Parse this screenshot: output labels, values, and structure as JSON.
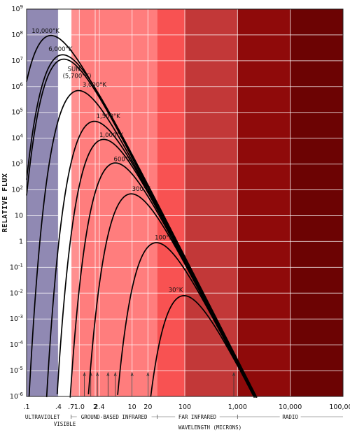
{
  "chart_data": {
    "type": "line",
    "title": "",
    "ylabel": "RELATIVE FLUX",
    "xlabel": "WAVELENGTH (MICRONS)",
    "x_scale": "log",
    "y_scale": "log",
    "xlim": [
      0.1,
      100000
    ],
    "ylim": [
      1e-06,
      1000000000.0
    ],
    "grid": true,
    "x_tick_labels": [
      {
        "v": 0.1,
        "t": ".1"
      },
      {
        "v": 0.4,
        "t": ".4"
      },
      {
        "v": 0.7,
        "t": ".7"
      },
      {
        "v": 1.0,
        "t": "1.0"
      },
      {
        "v": 2,
        "t": "2"
      },
      {
        "v": 2.4,
        "t": "2.4"
      },
      {
        "v": 10,
        "t": "10"
      },
      {
        "v": 20,
        "t": "20"
      },
      {
        "v": 100,
        "t": "100"
      },
      {
        "v": 1000,
        "t": "1,000"
      },
      {
        "v": 10000,
        "t": "10,000"
      },
      {
        "v": 100000,
        "t": "100,000"
      }
    ],
    "y_tick_labels": [
      {
        "e": 9,
        "t": "10",
        "sup": "9"
      },
      {
        "e": 8,
        "t": "10",
        "sup": "8"
      },
      {
        "e": 7,
        "t": "10",
        "sup": "7"
      },
      {
        "e": 6,
        "t": "10",
        "sup": "6"
      },
      {
        "e": 5,
        "t": "10",
        "sup": "5"
      },
      {
        "e": 4,
        "t": "10",
        "sup": "4"
      },
      {
        "e": 3,
        "t": "10",
        "sup": "3"
      },
      {
        "e": 2,
        "t": "10",
        "sup": "2"
      },
      {
        "e": 1,
        "t": "10",
        "sup": ""
      },
      {
        "e": 0,
        "t": "1",
        "sup": ""
      },
      {
        "e": -1,
        "t": "10",
        "sup": "-1"
      },
      {
        "e": -2,
        "t": "10",
        "sup": "-2"
      },
      {
        "e": -3,
        "t": "10",
        "sup": "-3"
      },
      {
        "e": -4,
        "t": "10",
        "sup": "-4"
      },
      {
        "e": -5,
        "t": "10",
        "sup": "-5"
      },
      {
        "e": -6,
        "t": "10",
        "sup": "-6"
      }
    ],
    "bands": [
      {
        "from": 0.1,
        "to": 0.4,
        "color": "#9089b3"
      },
      {
        "from": 0.4,
        "to": 0.7,
        "color": "#ffffff"
      },
      {
        "from": 0.7,
        "to": 1.0,
        "color": "#ff8f8f"
      },
      {
        "from": 1.0,
        "to": 30,
        "color": "#ff7d7d"
      },
      {
        "from": 30,
        "to": 100,
        "color": "#f85252"
      },
      {
        "from": 100,
        "to": 1000,
        "color": "#c23838"
      },
      {
        "from": 1000,
        "to": 10000,
        "color": "#8f0a0a"
      },
      {
        "from": 10000,
        "to": 100000,
        "color": "#6c0303"
      }
    ],
    "window_markers": [
      1.25,
      1.65,
      2.2,
      3.5,
      4.8,
      10,
      20,
      850
    ],
    "series": [
      {
        "name": "10,000°K",
        "temperature": 10000,
        "peak_lambda": 0.29,
        "peak_flux": 95000000.0,
        "label_x": 0.125,
        "label_y": 120000000.0
      },
      {
        "name": "6,000°K",
        "temperature": 6000,
        "peak_lambda": 0.48,
        "peak_flux": 17000000.0,
        "label_x": 0.26,
        "label_y": 24000000.0
      },
      {
        "name": "SUN",
        "temperature": 5700,
        "peak_lambda": 0.51,
        "peak_flux": 11500000.0,
        "label_x": 0.6,
        "label_y": 4000000.0
      },
      {
        "name": "3,000°K",
        "temperature": 3000,
        "peak_lambda": 0.97,
        "peak_flux": 700000.0,
        "label_x": 1.15,
        "label_y": 1000000.0
      },
      {
        "name": "1,500°K",
        "temperature": 1500,
        "peak_lambda": 1.93,
        "peak_flux": 45000.0,
        "label_x": 2.1,
        "label_y": 60000.0
      },
      {
        "name": "1,000°K",
        "temperature": 1000,
        "peak_lambda": 2.9,
        "peak_flux": 9000.0,
        "label_x": 2.4,
        "label_y": 11000.0
      },
      {
        "name": "600°K",
        "temperature": 600,
        "peak_lambda": 4.83,
        "peak_flux": 1100.0,
        "label_x": 4.5,
        "label_y": 1300.0
      },
      {
        "name": "300°K",
        "temperature": 300,
        "peak_lambda": 9.7,
        "peak_flux": 70,
        "label_x": 10,
        "label_y": 90
      },
      {
        "name": "100°K",
        "temperature": 100,
        "peak_lambda": 29,
        "peak_flux": 0.9,
        "label_x": 27,
        "label_y": 1.2
      },
      {
        "name": "30°K",
        "temperature": 30,
        "peak_lambda": 97,
        "peak_flux": 0.008,
        "label_x": 49,
        "label_y": 0.011
      }
    ],
    "sun_sublabel": "(5,700°K)",
    "regions": [
      {
        "from": 0.1,
        "to": 0.4,
        "label": "ULTRAVIOLET",
        "row": 1
      },
      {
        "from": 0.4,
        "to": 0.7,
        "label": "VISIBLE",
        "row": 2
      },
      {
        "from": 0.7,
        "to": 30,
        "label": "GROUND-BASED INFRARED",
        "row": 1
      },
      {
        "from": 30,
        "to": 1000,
        "label": "FAR INFRARED",
        "row": 1
      },
      {
        "from": 1000,
        "to": 100000,
        "label": "RADIO",
        "row": 1
      }
    ]
  }
}
